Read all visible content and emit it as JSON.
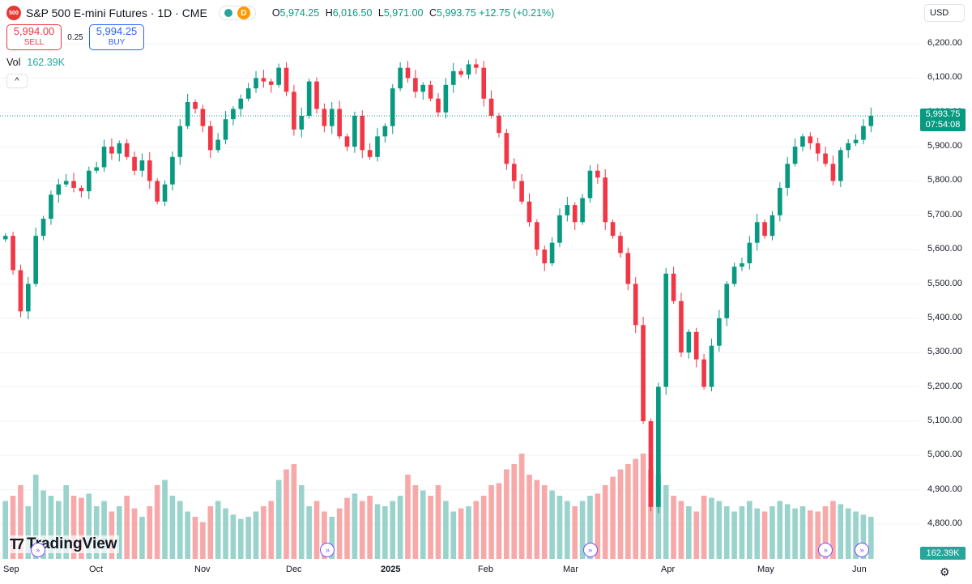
{
  "header": {
    "logo_text": "500",
    "symbol_title": "S&P 500 E-mini Futures · 1D · CME",
    "badge_letter": "D",
    "ohlc": {
      "o_label": "O",
      "o_value": "5,974.25",
      "h_label": "H",
      "h_value": "6,016.50",
      "l_label": "L",
      "l_value": "5,971.00",
      "c_label": "C",
      "c_value": "5,993.75",
      "change": "+12.75 (+0.21%)"
    }
  },
  "trade": {
    "sell_price": "5,994.00",
    "sell_label": "SELL",
    "spread": "0.25",
    "buy_price": "5,994.25",
    "buy_label": "BUY"
  },
  "volume_legend": {
    "label": "Vol",
    "value": "162.39K"
  },
  "currency": "USD",
  "last_price": {
    "price": "5,993.75",
    "countdown": "07:54:08"
  },
  "volume_tag": "162.39K",
  "branding": "TradingView",
  "colors": {
    "up": "#089981",
    "down": "#f23645",
    "vol_up": "#9ad3cc",
    "vol_down": "#f7a9a9",
    "event": "#7b4cff"
  },
  "chart_data": {
    "type": "candlestick",
    "y_ticks": [
      "6,200.00",
      "6,100.00",
      "6,000.00",
      "5,900.00",
      "5,800.00",
      "5,700.00",
      "5,600.00",
      "5,500.00",
      "5,400.00",
      "5,300.00",
      "5,200.00",
      "5,100.00",
      "5,000.00",
      "4,900.00",
      "4,800.00"
    ],
    "x_ticks": [
      "Sep",
      "Oct",
      "Nov",
      "Dec",
      "2025",
      "Feb",
      "Mar",
      "Apr",
      "May",
      "Jun"
    ],
    "ylim": [
      4750,
      6250
    ],
    "price_path": [
      5640,
      5540,
      5420,
      5500,
      5640,
      5690,
      5760,
      5790,
      5800,
      5780,
      5770,
      5830,
      5840,
      5900,
      5880,
      5910,
      5870,
      5830,
      5860,
      5800,
      5740,
      5790,
      5870,
      5960,
      6030,
      6010,
      5960,
      5890,
      5920,
      5980,
      6010,
      6040,
      6070,
      6100,
      6090,
      6080,
      6130,
      6060,
      5950,
      5990,
      6090,
      6010,
      5960,
      6010,
      5930,
      5900,
      5990,
      5890,
      5870,
      5930,
      5960,
      6070,
      6130,
      6100,
      6060,
      6080,
      6040,
      6000,
      6080,
      6120,
      6110,
      6140,
      6130,
      6040,
      5990,
      5940,
      5850,
      5800,
      5740,
      5680,
      5600,
      5560,
      5620,
      5700,
      5730,
      5680,
      5750,
      5830,
      5810,
      5680,
      5640,
      5590,
      5500,
      5380,
      5100,
      4850,
      5200,
      5530,
      5450,
      5300,
      5360,
      5280,
      5200,
      5320,
      5400,
      5500,
      5550,
      5560,
      5620,
      5680,
      5640,
      5700,
      5780,
      5850,
      5900,
      5930,
      5910,
      5880,
      5850,
      5800,
      5890,
      5910,
      5920,
      5960,
      5990
    ],
    "volume_heights": [
      0.55,
      0.6,
      0.7,
      0.5,
      0.8,
      0.65,
      0.6,
      0.55,
      0.7,
      0.6,
      0.58,
      0.62,
      0.5,
      0.55,
      0.45,
      0.5,
      0.6,
      0.48,
      0.4,
      0.5,
      0.7,
      0.75,
      0.6,
      0.55,
      0.45,
      0.4,
      0.35,
      0.5,
      0.55,
      0.48,
      0.42,
      0.38,
      0.4,
      0.45,
      0.5,
      0.55,
      0.75,
      0.85,
      0.9,
      0.7,
      0.5,
      0.55,
      0.45,
      0.4,
      0.48,
      0.58,
      0.62,
      0.55,
      0.6,
      0.52,
      0.5,
      0.55,
      0.6,
      0.8,
      0.7,
      0.65,
      0.6,
      0.7,
      0.55,
      0.45,
      0.48,
      0.5,
      0.55,
      0.6,
      0.7,
      0.72,
      0.85,
      0.9,
      1.0,
      0.8,
      0.75,
      0.7,
      0.65,
      0.6,
      0.55,
      0.5,
      0.55,
      0.6,
      0.62,
      0.7,
      0.78,
      0.85,
      0.9,
      0.95,
      1.0,
      0.85,
      0.8,
      0.7,
      0.6,
      0.55,
      0.5,
      0.45,
      0.6,
      0.58,
      0.55,
      0.5,
      0.45,
      0.5,
      0.55,
      0.48,
      0.45,
      0.5,
      0.55,
      0.52,
      0.48,
      0.5,
      0.46,
      0.45,
      0.5,
      0.55,
      0.52,
      0.48,
      0.45,
      0.42,
      0.4,
      0.38
    ],
    "events_at": [
      0.04,
      0.36,
      0.65,
      0.91,
      0.95
    ]
  }
}
